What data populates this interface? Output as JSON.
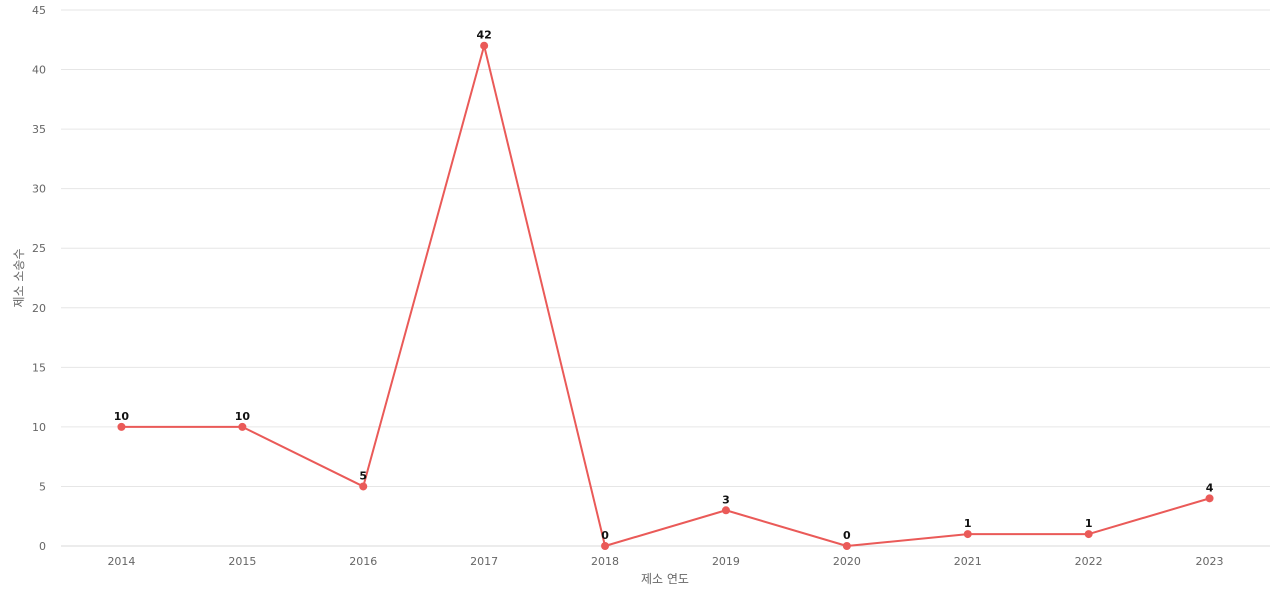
{
  "chart_data": {
    "type": "line",
    "x": [
      "2014",
      "2015",
      "2016",
      "2017",
      "2018",
      "2019",
      "2020",
      "2021",
      "2022",
      "2023"
    ],
    "series": [
      {
        "values": [
          10,
          10,
          5,
          42,
          0,
          3,
          0,
          1,
          1,
          4
        ],
        "color": "#ea5a58"
      }
    ],
    "xlabel": "제소 연도",
    "ylabel": "제소 소송수",
    "ylim": [
      0,
      45
    ],
    "yticks": [
      0,
      5,
      10,
      15,
      20,
      25,
      30,
      35,
      40,
      45
    ],
    "grid": true,
    "data_labels": true
  }
}
